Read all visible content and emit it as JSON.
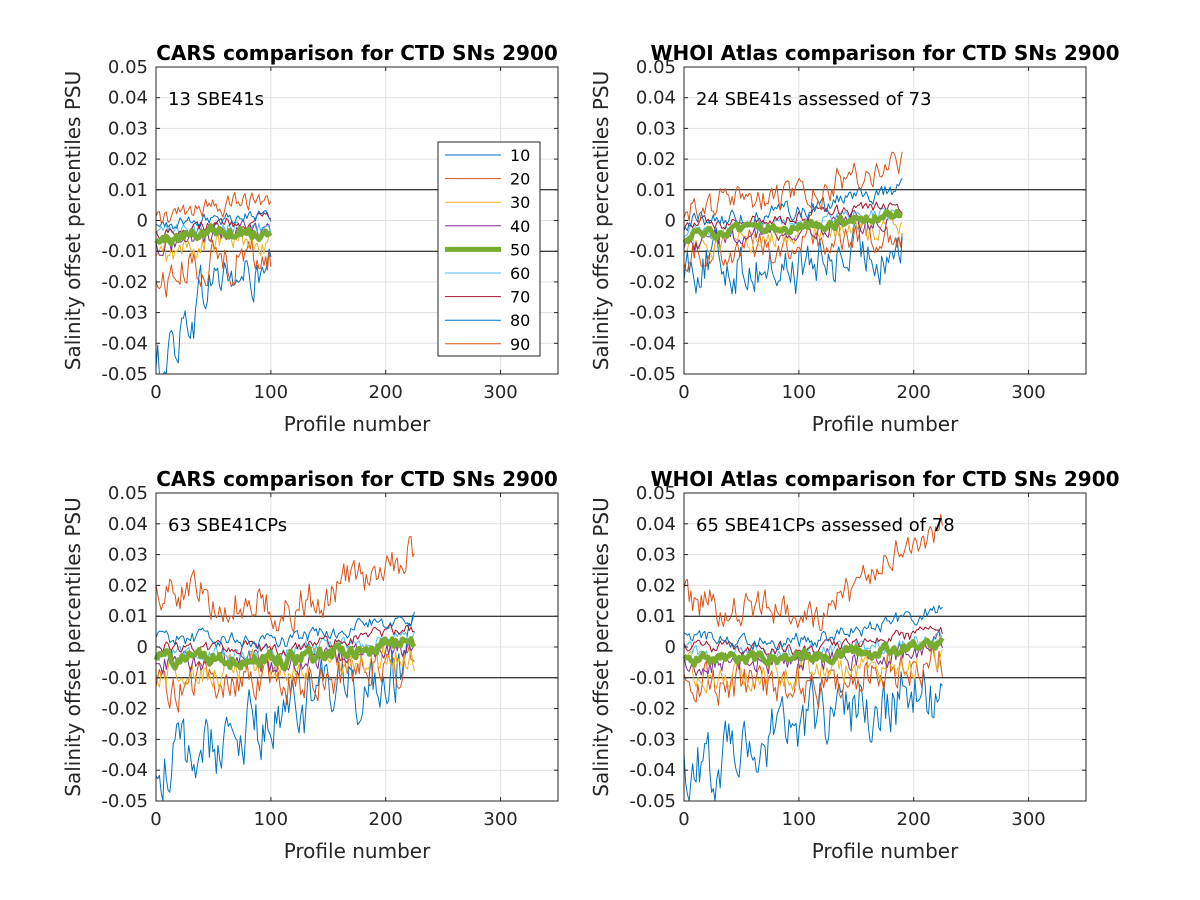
{
  "figure": {
    "legend": {
      "entries": [
        "10",
        "20",
        "30",
        "40",
        "50",
        "60",
        "70",
        "80",
        "90"
      ],
      "colors": [
        "#0072bd",
        "#d95319",
        "#edb120",
        "#7e2f8e",
        "#77ac30",
        "#4dbeee",
        "#a2142f",
        "#0072bd",
        "#d95319"
      ],
      "bold_entry": "50"
    }
  },
  "chart_data": [
    {
      "type": "line",
      "title": "CARS comparison for CTD SNs 2900",
      "xlabel": "Profile number",
      "ylabel": "Salinity offset percentiles PSU",
      "annotation": "13 SBE41s",
      "xlim": [
        0,
        350
      ],
      "ylim": [
        -0.05,
        0.05
      ],
      "xticks": [
        "0",
        "100",
        "200",
        "300"
      ],
      "yticks": [
        "0.05",
        "0.04",
        "0.03",
        "0.02",
        "0.01",
        "0",
        "-0.01",
        "-0.02",
        "-0.03",
        "-0.04",
        "-0.05"
      ],
      "reference_lines": [
        0.01,
        -0.01
      ],
      "grid": true,
      "legend_position": "inside-right",
      "x_extent": 100,
      "percentile_levels": [
        {
          "name": "10",
          "start": -0.05,
          "mid": -0.018,
          "end": -0.02
        },
        {
          "name": "20",
          "start": -0.021,
          "mid": -0.012,
          "end": -0.012
        },
        {
          "name": "30",
          "start": -0.013,
          "mid": -0.007,
          "end": -0.006
        },
        {
          "name": "40",
          "start": -0.008,
          "mid": -0.004,
          "end": -0.004
        },
        {
          "name": "50",
          "start": -0.007,
          "mid": -0.003,
          "end": -0.004
        },
        {
          "name": "60",
          "start": -0.005,
          "mid": -0.002,
          "end": -0.002
        },
        {
          "name": "70",
          "start": -0.004,
          "mid": -0.001,
          "end": 0.0
        },
        {
          "name": "80",
          "start": -0.002,
          "mid": 0.001,
          "end": 0.002
        },
        {
          "name": "90",
          "start": 0.0,
          "mid": 0.004,
          "end": 0.007
        }
      ]
    },
    {
      "type": "line",
      "title": "WHOI Atlas comparison for CTD SNs 2900",
      "xlabel": "Profile number",
      "ylabel": "Salinity offset percentiles PSU",
      "annotation": "24 SBE41s assessed of 73",
      "xlim": [
        0,
        350
      ],
      "ylim": [
        -0.05,
        0.05
      ],
      "xticks": [
        "0",
        "100",
        "200",
        "300"
      ],
      "yticks": [
        "0.05",
        "0.04",
        "0.03",
        "0.02",
        "0.01",
        "0",
        "-0.01",
        "-0.02",
        "-0.03",
        "-0.04",
        "-0.05"
      ],
      "reference_lines": [
        0.01,
        -0.01
      ],
      "grid": true,
      "x_extent": 190,
      "percentile_levels": [
        {
          "name": "10",
          "start": -0.013,
          "mid": -0.016,
          "end": -0.008
        },
        {
          "name": "20",
          "start": -0.01,
          "mid": -0.008,
          "end": -0.004
        },
        {
          "name": "30",
          "start": -0.008,
          "mid": -0.005,
          "end": -0.002
        },
        {
          "name": "40",
          "start": -0.007,
          "mid": -0.003,
          "end": 0.001
        },
        {
          "name": "50",
          "start": -0.005,
          "mid": -0.002,
          "end": 0.002
        },
        {
          "name": "60",
          "start": -0.004,
          "mid": -0.001,
          "end": 0.003
        },
        {
          "name": "70",
          "start": -0.002,
          "mid": 0.001,
          "end": 0.005
        },
        {
          "name": "80",
          "start": 0.0,
          "mid": 0.003,
          "end": 0.01
        },
        {
          "name": "90",
          "start": 0.004,
          "mid": 0.008,
          "end": 0.02
        }
      ]
    },
    {
      "type": "line",
      "title": "CARS comparison for CTD SNs 2900",
      "xlabel": "Profile number",
      "ylabel": "Salinity offset percentiles PSU",
      "annotation": "63 SBE41CPs",
      "xlim": [
        0,
        350
      ],
      "ylim": [
        -0.05,
        0.05
      ],
      "xticks": [
        "0",
        "100",
        "200",
        "300"
      ],
      "yticks": [
        "0.05",
        "0.04",
        "0.03",
        "0.02",
        "0.01",
        "0",
        "-0.01",
        "-0.02",
        "-0.03",
        "-0.04",
        "-0.05"
      ],
      "reference_lines": [
        0.01,
        -0.01
      ],
      "grid": true,
      "x_extent": 225,
      "percentile_levels": [
        {
          "name": "10",
          "start": -0.04,
          "mid": -0.022,
          "end": -0.005
        },
        {
          "name": "20",
          "start": -0.012,
          "mid": -0.012,
          "end": -0.004
        },
        {
          "name": "30",
          "start": -0.008,
          "mid": -0.008,
          "end": -0.002
        },
        {
          "name": "40",
          "start": -0.005,
          "mid": -0.005,
          "end": 0.0
        },
        {
          "name": "50",
          "start": -0.004,
          "mid": -0.004,
          "end": 0.002
        },
        {
          "name": "60",
          "start": -0.002,
          "mid": -0.002,
          "end": 0.004
        },
        {
          "name": "70",
          "start": 0.0,
          "mid": -0.001,
          "end": 0.006
        },
        {
          "name": "80",
          "start": 0.003,
          "mid": 0.002,
          "end": 0.01
        },
        {
          "name": "90",
          "start": 0.02,
          "mid": 0.012,
          "end": 0.03
        }
      ]
    },
    {
      "type": "line",
      "title": "WHOI Atlas comparison for CTD SNs 2900",
      "xlabel": "Profile number",
      "ylabel": "Salinity offset percentiles PSU",
      "annotation": "65 SBE41CPs assessed of 78",
      "xlim": [
        0,
        350
      ],
      "ylim": [
        -0.05,
        0.05
      ],
      "xticks": [
        "0",
        "100",
        "200",
        "300"
      ],
      "yticks": [
        "0.05",
        "0.04",
        "0.03",
        "0.02",
        "0.01",
        "0",
        "-0.01",
        "-0.02",
        "-0.03",
        "-0.04",
        "-0.05"
      ],
      "reference_lines": [
        0.01,
        -0.01
      ],
      "grid": true,
      "x_extent": 225,
      "percentile_levels": [
        {
          "name": "10",
          "start": -0.04,
          "mid": -0.022,
          "end": -0.015
        },
        {
          "name": "20",
          "start": -0.012,
          "mid": -0.012,
          "end": -0.005
        },
        {
          "name": "30",
          "start": -0.008,
          "mid": -0.008,
          "end": -0.003
        },
        {
          "name": "40",
          "start": -0.005,
          "mid": -0.005,
          "end": 0.0
        },
        {
          "name": "50",
          "start": -0.004,
          "mid": -0.003,
          "end": 0.001
        },
        {
          "name": "60",
          "start": -0.002,
          "mid": -0.002,
          "end": 0.003
        },
        {
          "name": "70",
          "start": 0.0,
          "mid": -0.001,
          "end": 0.005
        },
        {
          "name": "80",
          "start": 0.003,
          "mid": 0.002,
          "end": 0.012
        },
        {
          "name": "90",
          "start": 0.015,
          "mid": 0.01,
          "end": 0.04
        }
      ]
    }
  ]
}
